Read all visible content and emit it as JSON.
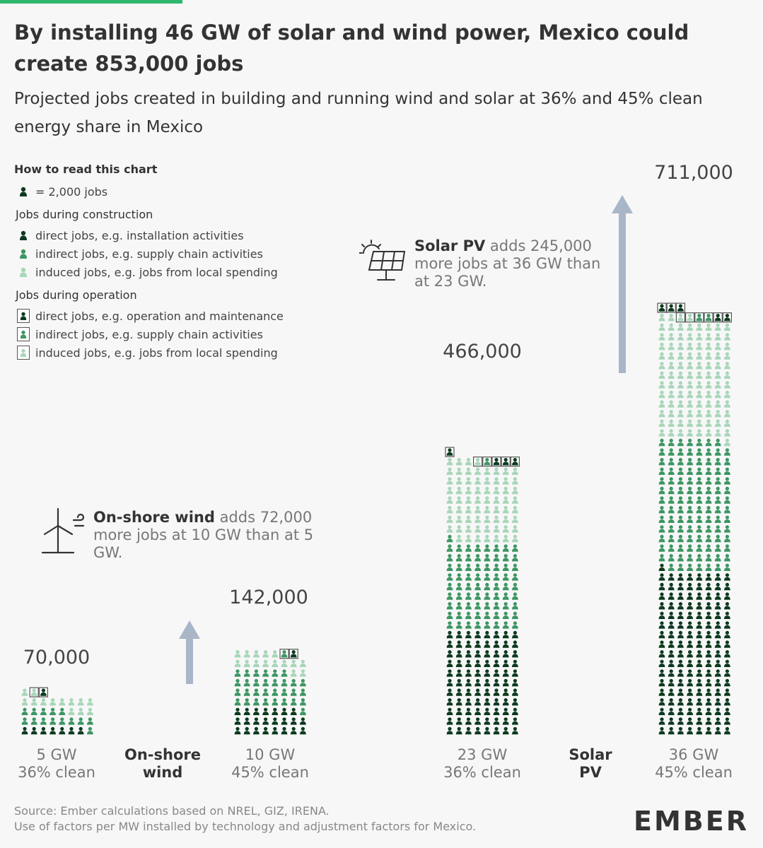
{
  "title": "By installing 46 GW of solar and wind power, Mexico could create 853,000 jobs",
  "subtitle": "Projected jobs created in building and running wind and solar at 36% and 45% clean energy share in Mexico",
  "legend": {
    "title": "How to read this chart",
    "unit": "= 2,000 jobs",
    "construction_title": "Jobs during construction",
    "construction": [
      "direct jobs, e.g. installation activities",
      "indirect jobs, e.g. supply chain activities",
      "induced jobs, e.g. jobs from local spending"
    ],
    "operation_title": "Jobs during operation",
    "operation": [
      "direct jobs, e.g. operation and maintenance",
      "indirect jobs, e.g. supply chain activities",
      "induced jobs, e.g. jobs from local spending"
    ]
  },
  "colors": {
    "direct": "#0d3a1f",
    "indirect": "#3c9663",
    "induced": "#a8d6b9",
    "arrow": "#a9b6c8"
  },
  "callouts": {
    "wind": {
      "bold": "On-shore wind",
      "text": " adds 72,000 more jobs at 10 GW than at 5 GW."
    },
    "solar": {
      "bold": "Solar PV",
      "text": " adds 245,000 more jobs at 36 GW than at 23 GW."
    }
  },
  "tech_labels": {
    "wind": "On-shore wind",
    "solar": "Solar PV"
  },
  "chart_data": {
    "type": "table",
    "unit": "jobs",
    "icon_value": "2,000 jobs",
    "bars": [
      {
        "technology": "On-shore wind",
        "gw": "5 GW",
        "clean": "36% clean",
        "total_label": "70,000",
        "total": 70000,
        "construction": {
          "direct": 14000,
          "indirect": 28000,
          "induced": 24000
        },
        "operation": {
          "direct": 2000,
          "indirect": 0,
          "induced": 2000
        }
      },
      {
        "technology": "On-shore wind",
        "gw": "10 GW",
        "clean": "45% clean",
        "total_label": "142,000",
        "total": 142000,
        "construction": {
          "direct": 46000,
          "indirect": 62000,
          "induced": 30000
        },
        "operation": {
          "direct": 2000,
          "indirect": 2000,
          "induced": 0
        }
      },
      {
        "technology": "Solar PV",
        "gw": "23 GW",
        "clean": "36% clean",
        "total_label": "466,000",
        "total": 466000,
        "construction": {
          "direct": 176000,
          "indirect": 146000,
          "induced": 132000
        },
        "operation": {
          "direct": 8000,
          "indirect": 2000,
          "induced": 2000
        }
      },
      {
        "technology": "Solar PV",
        "gw": "36 GW",
        "clean": "45% clean",
        "total_label": "711,000",
        "total": 711000,
        "construction": {
          "direct": 274000,
          "indirect": 220000,
          "induced": 198000
        },
        "operation": {
          "direct": 10000,
          "indirect": 4000,
          "induced": 4000
        }
      }
    ]
  },
  "source": {
    "line1": "Source: Ember calculations based on NREL, GIZ, IRENA.",
    "line2": "Use of factors per MW installed by technology and adjustment factors for Mexico."
  },
  "logo": "EMBER"
}
